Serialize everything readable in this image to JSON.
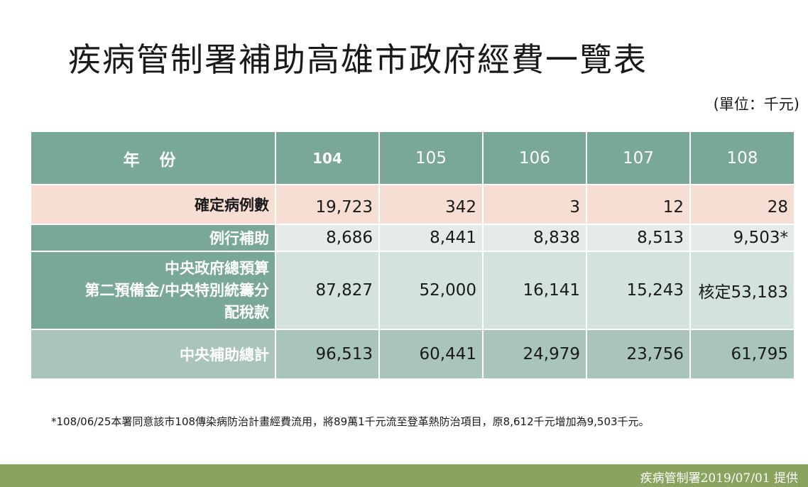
{
  "title": "疾病管制署補助高雄市政府經費一覽表",
  "unit": "(單位：千元)",
  "table": {
    "header": {
      "label": "年 份",
      "years": [
        "104",
        "105",
        "106",
        "107",
        "108"
      ]
    },
    "rows": [
      {
        "label_lines": [
          "確定病例數"
        ],
        "values": [
          "19,723",
          "342",
          "3",
          "12",
          "28"
        ]
      },
      {
        "label_lines": [
          "例行補助"
        ],
        "values": [
          "8,686",
          "8,441",
          "8,838",
          "8,513",
          "9,503*"
        ]
      },
      {
        "label_lines": [
          "中央政府總預算",
          "第二預備金/中央特別統籌分",
          "配稅款"
        ],
        "values": [
          "87,827",
          "52,000",
          "16,141",
          "15,243",
          "核定53,183"
        ]
      },
      {
        "label_lines": [
          "中央補助總計"
        ],
        "values": [
          "96,513",
          "60,441",
          "24,979",
          "23,756",
          "61,795"
        ]
      }
    ]
  },
  "footnote": "*108/06/25本署同意該市108傳染病防治計畫經費流用，將89萬1千元流至登革熱防治項目，原8,612千元增加為9,503千元。",
  "footer": "疾病管制署2019/07/01 提供",
  "colors": {
    "header_green": "#7aa898",
    "confirm_row": "#f6dfd2",
    "routine_row": "#e4ebe8",
    "central_row": "#d3e2dc",
    "total_row": "#a9c5bb",
    "footer_bar": "#8aa35e"
  }
}
